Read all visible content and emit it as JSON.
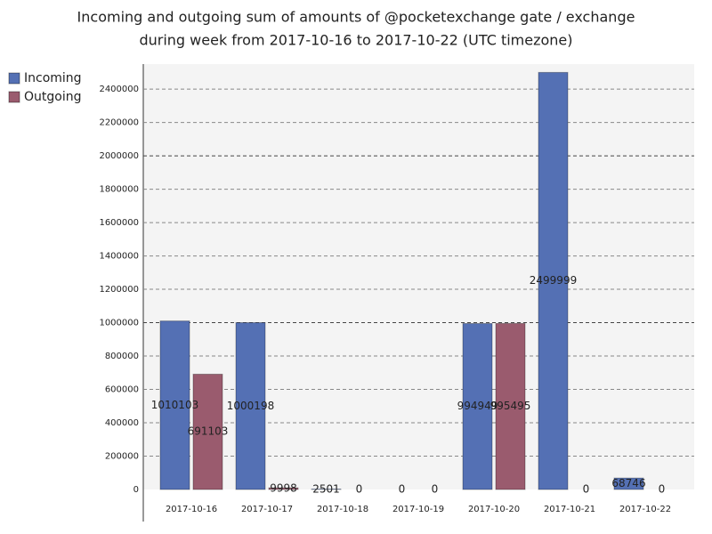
{
  "chart_data": {
    "type": "bar",
    "title": "Incoming and outgoing sum of amounts of @pocketexchange gate / exchange",
    "subtitle": "during week from 2017-10-16 to 2017-10-22 (UTC timezone)",
    "categories": [
      "2017-10-16",
      "2017-10-17",
      "2017-10-18",
      "2017-10-19",
      "2017-10-20",
      "2017-10-21",
      "2017-10-22"
    ],
    "series": [
      {
        "name": "Incoming",
        "color": "#5470b4",
        "values": [
          1010103,
          1000198,
          2501,
          0,
          994949,
          2499999,
          68746
        ]
      },
      {
        "name": "Outgoing",
        "color": "#9a5b6e",
        "values": [
          691103,
          9998,
          0,
          0,
          995495,
          0,
          0
        ]
      }
    ],
    "ylim": [
      0,
      2550000
    ],
    "yticks": [
      0,
      200000,
      400000,
      600000,
      800000,
      1000000,
      1200000,
      1400000,
      1600000,
      1800000,
      2000000,
      2200000,
      2400000
    ],
    "grid": true,
    "legend": "top-left"
  }
}
